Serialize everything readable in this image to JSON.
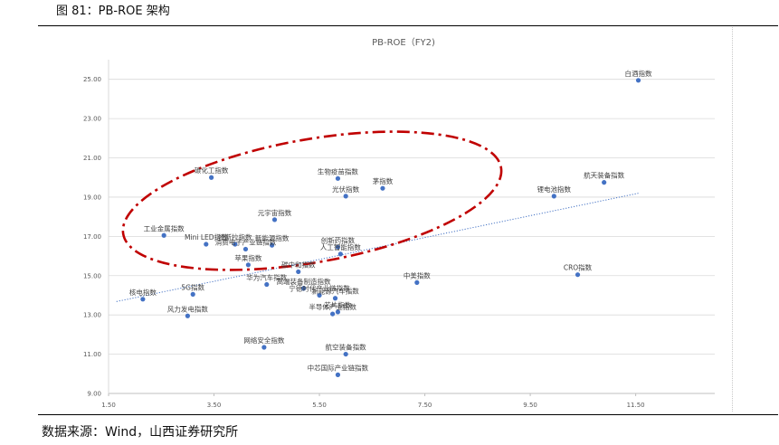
{
  "caption": "图 81：PB-ROE 架构",
  "source": "数据来源：Wind，山西证券研究所",
  "colors": {
    "marker": "#4472C4",
    "trendline": "#4472C4",
    "ellipse": "#C00000",
    "gridline": "#D9D9D9"
  },
  "chart_data": {
    "type": "scatter",
    "title": "PB-ROE（FY2)",
    "xlabel": "",
    "ylabel": "",
    "xlim": [
      1.5,
      13.0
    ],
    "ylim": [
      9.0,
      26.0
    ],
    "x_ticks": [
      "1.50",
      "3.50",
      "5.50",
      "7.50",
      "9.50",
      "11.50"
    ],
    "y_ticks": [
      "9.00",
      "11.00",
      "13.00",
      "15.00",
      "17.00",
      "19.00",
      "21.00",
      "23.00",
      "25.00"
    ],
    "grid": true,
    "trendline": {
      "type": "linear",
      "style": "dotted",
      "x_range": [
        1.65,
        11.55
      ]
    },
    "annotation": "red dash-dot ellipse",
    "points": [
      {
        "label": "白酒指数",
        "x": 11.55,
        "y": 24.95
      },
      {
        "label": "碳化工指数",
        "x": 3.45,
        "y": 20.0
      },
      {
        "label": "生物疫苗指数",
        "x": 5.85,
        "y": 19.95
      },
      {
        "label": "光伏指数",
        "x": 6.0,
        "y": 19.05
      },
      {
        "label": "茅指数",
        "x": 6.7,
        "y": 19.45
      },
      {
        "label": "锂电池指数",
        "x": 9.95,
        "y": 19.05
      },
      {
        "label": "航天装备指数",
        "x": 10.9,
        "y": 19.75
      },
      {
        "label": "元宇宙指数",
        "x": 4.65,
        "y": 17.85
      },
      {
        "label": "工业金属指数",
        "x": 2.55,
        "y": 17.05
      },
      {
        "label": "Mini LED指数",
        "x": 3.35,
        "y": 16.6
      },
      {
        "label": "特斯拉指数",
        "x": 3.9,
        "y": 16.6
      },
      {
        "label": "新能源指数",
        "x": 4.6,
        "y": 16.55
      },
      {
        "label": "消费电子产业链指数",
        "x": 4.1,
        "y": 16.35
      },
      {
        "label": "创新药指数",
        "x": 5.85,
        "y": 16.45
      },
      {
        "label": "人工智能指数",
        "x": 5.9,
        "y": 16.1
      },
      {
        "label": "苹果指数",
        "x": 4.15,
        "y": 15.55
      },
      {
        "label": "碳中和指数",
        "x": 5.1,
        "y": 15.2
      },
      {
        "label": "华为汽车指数",
        "x": 4.5,
        "y": 14.55
      },
      {
        "label": "高端装备制造指数",
        "x": 5.2,
        "y": 14.35
      },
      {
        "label": "宁德时代产业链指数",
        "x": 5.5,
        "y": 14.0
      },
      {
        "label": "新能源汽车指数",
        "x": 5.8,
        "y": 13.85
      },
      {
        "label": "中美指数",
        "x": 7.35,
        "y": 14.65
      },
      {
        "label": "CRO指数",
        "x": 10.4,
        "y": 15.05
      },
      {
        "label": "核电指数",
        "x": 2.15,
        "y": 13.8
      },
      {
        "label": "5G指数",
        "x": 3.1,
        "y": 14.05
      },
      {
        "label": "风力发电指数",
        "x": 3.0,
        "y": 12.95
      },
      {
        "label": "芯片指数",
        "x": 5.85,
        "y": 13.15
      },
      {
        "label": "半导体产业指数",
        "x": 5.75,
        "y": 13.05
      },
      {
        "label": "网络安全指数",
        "x": 4.45,
        "y": 11.35
      },
      {
        "label": "航空装备指数",
        "x": 6.0,
        "y": 11.0
      },
      {
        "label": "中芯国际产业链指数",
        "x": 5.85,
        "y": 9.95
      }
    ]
  }
}
